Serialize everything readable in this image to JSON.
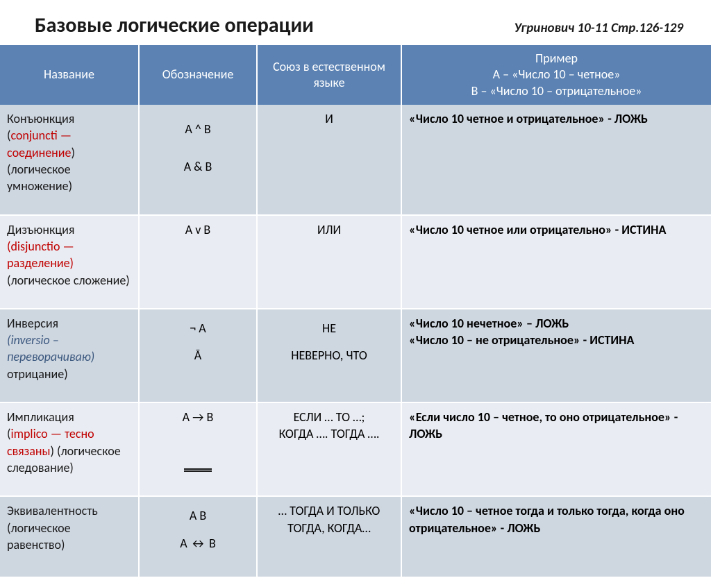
{
  "colors": {
    "header_bg": "#5b82b3",
    "header_text": "#ffffff",
    "band_a": "#ced6e0",
    "band_b": "#e9ecf2",
    "text_black": "#1a1a1a",
    "text_red": "#c00000",
    "text_blue_italic": "#3b587e"
  },
  "title": "Базовые логические операции",
  "reference": "Угринович 10-11 Стр.126-129",
  "columns": {
    "name": "Название",
    "notation": "Обозначение",
    "union": "Союз в естественном языке",
    "example_h1": "Пример",
    "example_h2": "А – «Число 10 – четное»",
    "example_h3": "В – «Число 10 – отрицательное»"
  },
  "rows": [
    {
      "name_l1": "Конъюнкция",
      "name_l2a": "(",
      "name_l2b": "conjuncti — соединение",
      "name_l2c": ")",
      "name_l3": "(логическое умножение)",
      "notation_l1": "А ^ В",
      "notation_l2": "A &  B",
      "union_l1": "И",
      "example": "«Число 10 четное и отрицательное» - ЛОЖЬ"
    },
    {
      "name_l1": "Дизъюнкция",
      "name_l2a": "(",
      "name_l2b": "disjunctio — разделение",
      "name_l2c": ")",
      "name_l3": "(логическое сложение)",
      "notation_l1": "A v B",
      "union_l1": "ИЛИ",
      "example": "«Число 10 четное или отрицательно» - ИСТИНА"
    },
    {
      "name_l1": "Инверсия",
      "name_l2a": "(",
      "name_l2b": "inversio – переворачиваю",
      "name_l2c": ")",
      "name_l3": "отрицание)",
      "notation_l1": "¬ A",
      "notation_l2": "Ā",
      "union_l1": "НЕ",
      "union_l2": "НЕВЕРНО, ЧТО",
      "example_l1": "«Число 10 нечетное» – ЛОЖЬ",
      "example_l2": "«Число 10 – не отрицательное» - ИСТИНА"
    },
    {
      "name_l1": "Импликация",
      "name_l2a": "(",
      "name_l2b": "implico — тесно связаны",
      "name_l2c": ") (логическое следование)",
      "notation_l1": "A → B",
      "union_l1": "ЕСЛИ … ТО …;",
      "union_l2": "КОГДА …. ТОГДА ….",
      "example": "«Если число 10 – четное, то оно отрицательное» - ЛОЖЬ"
    },
    {
      "name_l1": "Эквивалентность",
      "name_l3a": "(логическое",
      "name_l3b": "равенство)",
      "notation_l1": "A     B",
      "notation_l2": "A ↔ B",
      "union_l1": "… ТОГДА И ТОЛЬКО ТОГДА, КОГДА…",
      "example": "«Число 10 – четное тогда и только тогда, когда оно отрицательное» - ЛОЖЬ"
    }
  ]
}
